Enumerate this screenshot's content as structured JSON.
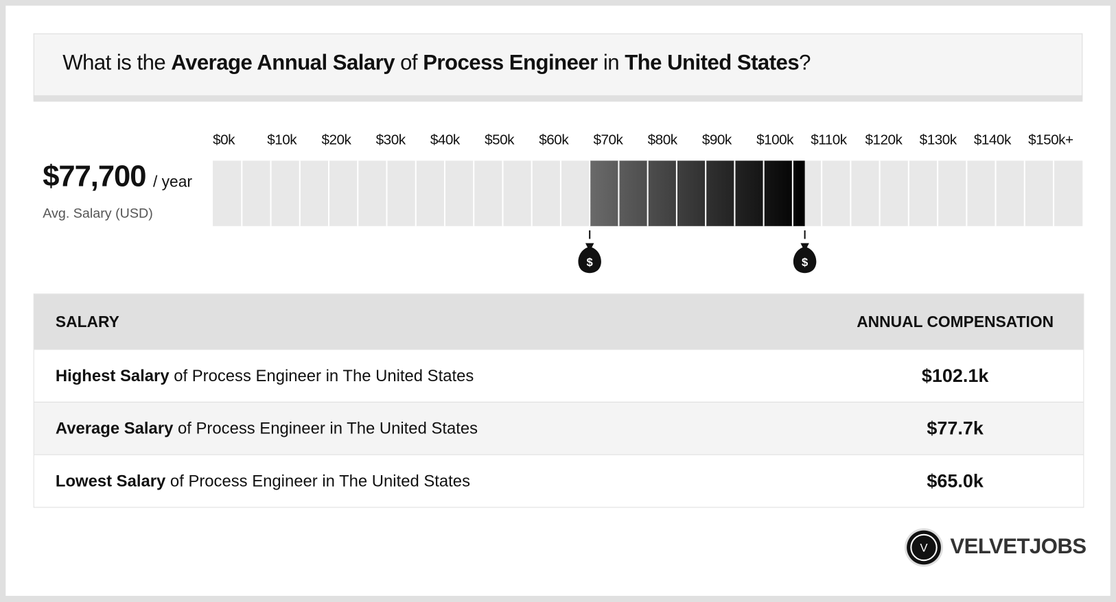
{
  "header": {
    "title": [
      {
        "text": "What is the",
        "bold": false
      },
      {
        "text": "Average Annual Salary",
        "bold": true
      },
      {
        "text": "of",
        "bold": false
      },
      {
        "text": "Process Engineer",
        "bold": true
      },
      {
        "text": "in",
        "bold": false
      },
      {
        "text": "The United States",
        "bold": true
      },
      {
        "text": "?",
        "bold": false
      }
    ]
  },
  "summary": {
    "amount": "$77,700",
    "unit": "/ year",
    "caption": "Avg. Salary (USD)"
  },
  "scale": {
    "xlim": [
      0,
      150000
    ],
    "xticks": [
      {
        "value": 0,
        "label": "$0k"
      },
      {
        "value": 10000,
        "label": "$10k"
      },
      {
        "value": 20000,
        "label": "$20k"
      },
      {
        "value": 30000,
        "label": "$30k"
      },
      {
        "value": 40000,
        "label": "$40k"
      },
      {
        "value": 50000,
        "label": "$50k"
      },
      {
        "value": 60000,
        "label": "$60k"
      },
      {
        "value": 70000,
        "label": "$70k"
      },
      {
        "value": 80000,
        "label": "$80k"
      },
      {
        "value": 90000,
        "label": "$90k"
      },
      {
        "value": 100000,
        "label": "$100k"
      },
      {
        "value": 110000,
        "label": "$110k"
      },
      {
        "value": 120000,
        "label": "$120k"
      },
      {
        "value": 130000,
        "label": "$130k"
      },
      {
        "value": 140000,
        "label": "$140k"
      },
      {
        "value": 150000,
        "label": "$150k+"
      }
    ],
    "range": {
      "low": 65000,
      "high": 102100
    }
  },
  "table": {
    "headers": [
      "SALARY",
      "ANNUAL COMPENSATION"
    ],
    "rows": [
      {
        "label_bold": "Highest Salary",
        "label_rest": "of Process Engineer in The United States",
        "value": "$102.1k"
      },
      {
        "label_bold": "Average Salary",
        "label_rest": "of Process Engineer in The United States",
        "value": "$77.7k"
      },
      {
        "label_bold": "Lowest Salary",
        "label_rest": "of Process Engineer in The United States",
        "value": "$65.0k"
      }
    ]
  },
  "logo": {
    "icon": "V",
    "name": "VELVETJOBS"
  }
}
